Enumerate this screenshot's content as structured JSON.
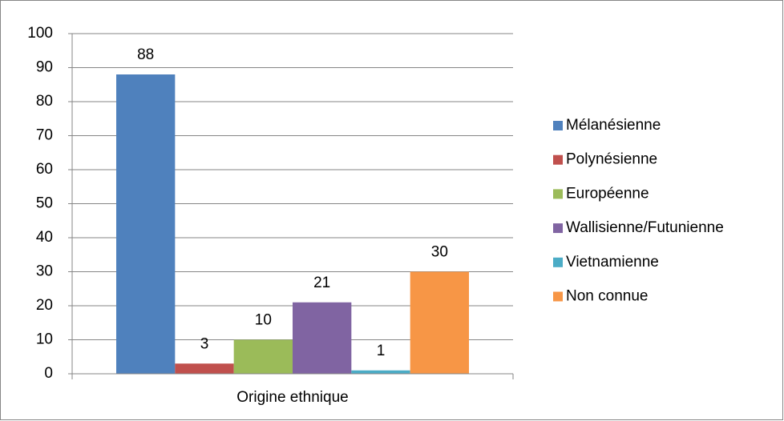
{
  "chart_data": {
    "type": "bar",
    "categories": [
      "Origine ethnique"
    ],
    "series": [
      {
        "name": "Mélanésienne",
        "color": "#4f81bd",
        "values": [
          88
        ]
      },
      {
        "name": "Polynésienne",
        "color": "#c0504d",
        "values": [
          3
        ]
      },
      {
        "name": "Européenne",
        "color": "#9bbb59",
        "values": [
          10
        ]
      },
      {
        "name": "Wallisienne/Futunienne",
        "color": "#8064a2",
        "values": [
          21
        ]
      },
      {
        "name": "Vietnamienne",
        "color": "#4bacc6",
        "values": [
          1
        ]
      },
      {
        "name": "Non connue",
        "color": "#f79646",
        "values": [
          30
        ]
      }
    ],
    "ylim": [
      0,
      100
    ],
    "yticks": [
      0,
      10,
      20,
      30,
      40,
      50,
      60,
      70,
      80,
      90,
      100
    ],
    "grid": true,
    "legend": "right"
  }
}
